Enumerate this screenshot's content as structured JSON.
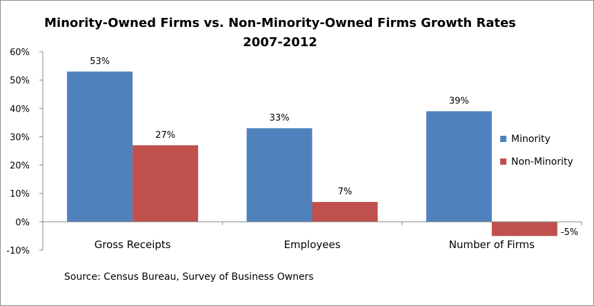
{
  "chart_data": {
    "type": "bar",
    "title": "Minority-Owned Firms vs. Non-Minority-Owned Firms Growth Rates",
    "subtitle": "2007-2012",
    "categories": [
      "Gross Receipts",
      "Employees",
      "Number of Firms"
    ],
    "series": [
      {
        "name": "Minority",
        "color": "#4f81bd",
        "values": [
          53,
          33,
          39
        ],
        "labels": [
          "53%",
          "33%",
          "39%"
        ]
      },
      {
        "name": "Non-Minority",
        "color": "#c0504d",
        "values": [
          27,
          7,
          -5
        ],
        "labels": [
          "27%",
          "7%",
          "-5%"
        ]
      }
    ],
    "ylim": [
      -10,
      60
    ],
    "yticks": [
      60,
      50,
      40,
      30,
      20,
      10,
      0,
      -10
    ],
    "ytick_labels": [
      "60%",
      "50%",
      "40%",
      "30%",
      "20%",
      "10%",
      "0%",
      "-10%"
    ],
    "xlabel": "",
    "ylabel": "",
    "grid": false,
    "legend_position": "right",
    "source": "Source: Census Bureau, Survey of Business Owners"
  }
}
